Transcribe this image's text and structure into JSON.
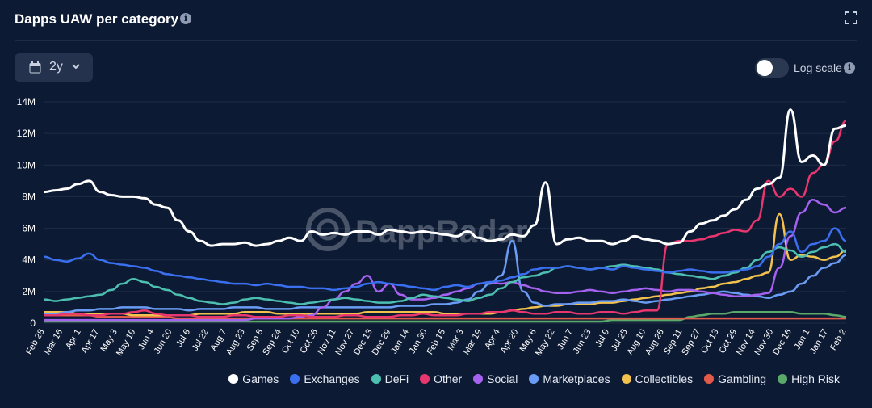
{
  "header": {
    "title": "Dapps UAW per category"
  },
  "controls": {
    "range_label": "2y",
    "log_scale_label": "Log scale",
    "log_scale_on": false
  },
  "watermark": "DappRadar",
  "chart_data": {
    "type": "line",
    "title": "Dapps UAW per category",
    "xlabel": "",
    "ylabel": "",
    "ylim": [
      0,
      14000000
    ],
    "y_ticks": [
      "0",
      "2M",
      "4M",
      "6M",
      "8M",
      "10M",
      "12M",
      "14M"
    ],
    "x_ticks": [
      "Feb 28",
      "Mar 16",
      "Apr 1",
      "Apr 17",
      "May 3",
      "May 19",
      "Jun 4",
      "Jun 20",
      "Jul 6",
      "Jul 22",
      "Aug 7",
      "Aug 23",
      "Sep 8",
      "Sep 24",
      "Oct 10",
      "Oct 26",
      "Nov 11",
      "Nov 27",
      "Dec 13",
      "Dec 29",
      "Jan 14",
      "Jan 30",
      "Feb 15",
      "Mar 3",
      "Mar 19",
      "Apr 4",
      "Apr 20",
      "May 6",
      "May 22",
      "Jun 7",
      "Jun 23",
      "Jul 9",
      "Jul 25",
      "Aug 10",
      "Aug 26",
      "Sep 11",
      "Sep 27",
      "Oct 13",
      "Oct 29",
      "Nov 14",
      "Nov 30",
      "Dec 16",
      "Jan 1",
      "Jan 17",
      "Feb 2"
    ],
    "grid": true,
    "legend_position": "bottom-right",
    "series": [
      {
        "name": "Games",
        "color": "#ffffff",
        "values": [
          8.3,
          8.4,
          8.5,
          8.8,
          9.0,
          8.3,
          8.1,
          8.0,
          8.0,
          7.9,
          7.5,
          7.3,
          6.5,
          5.8,
          5.2,
          4.9,
          5.0,
          5.0,
          5.1,
          4.9,
          5.0,
          5.2,
          5.4,
          5.2,
          5.8,
          5.6,
          5.7,
          5.6,
          5.8,
          5.8,
          5.6,
          5.9,
          5.8,
          5.7,
          5.8,
          5.7,
          5.6,
          5.5,
          5.8,
          5.4,
          5.2,
          5.3,
          5.6,
          5.5,
          6.2,
          8.9,
          5.0,
          5.3,
          5.4,
          5.2,
          5.2,
          5.0,
          5.2,
          5.5,
          5.3,
          5.2,
          5.0,
          5.1,
          5.8,
          6.3,
          6.5,
          6.8,
          7.2,
          7.8,
          8.5,
          8.8,
          9.2,
          13.5,
          10.2,
          10.6,
          10.0,
          12.3,
          12.5
        ]
      },
      {
        "name": "Exchanges",
        "color": "#3a6ff0",
        "values": [
          4.2,
          4.0,
          3.9,
          4.1,
          4.4,
          4.0,
          3.8,
          3.7,
          3.6,
          3.5,
          3.3,
          3.1,
          3.0,
          2.9,
          2.8,
          2.7,
          2.6,
          2.5,
          2.5,
          2.4,
          2.5,
          2.4,
          2.3,
          2.3,
          2.2,
          2.2,
          2.1,
          2.2,
          2.3,
          2.5,
          2.6,
          2.5,
          2.4,
          2.3,
          2.2,
          2.1,
          2.3,
          2.4,
          2.3,
          2.5,
          2.6,
          2.7,
          2.9,
          3.1,
          3.4,
          3.5,
          3.5,
          3.6,
          3.5,
          3.4,
          3.5,
          3.4,
          3.6,
          3.5,
          3.4,
          3.3,
          3.2,
          3.3,
          3.4,
          3.3,
          3.2,
          3.2,
          3.3,
          3.4,
          3.6,
          4.2,
          5.0,
          5.8,
          4.5,
          5.0,
          5.2,
          6.0,
          5.2
        ]
      },
      {
        "name": "DeFi",
        "color": "#4dbfb0",
        "values": [
          1.5,
          1.4,
          1.5,
          1.6,
          1.7,
          1.8,
          2.1,
          2.5,
          2.8,
          2.6,
          2.3,
          2.1,
          1.8,
          1.6,
          1.4,
          1.3,
          1.2,
          1.3,
          1.5,
          1.6,
          1.5,
          1.4,
          1.3,
          1.2,
          1.3,
          1.4,
          1.5,
          1.6,
          1.5,
          1.4,
          1.3,
          1.3,
          1.4,
          1.6,
          1.8,
          1.7,
          1.6,
          1.5,
          1.4,
          1.6,
          1.8,
          2.2,
          2.6,
          2.9,
          3.0,
          3.2,
          3.5,
          3.6,
          3.5,
          3.4,
          3.5,
          3.6,
          3.7,
          3.6,
          3.5,
          3.4,
          3.2,
          3.1,
          3.0,
          2.9,
          2.8,
          3.0,
          3.2,
          3.5,
          4.0,
          4.5,
          4.8,
          4.6,
          4.2,
          4.5,
          4.8,
          5.0,
          4.5
        ]
      },
      {
        "name": "Other",
        "color": "#e8366e",
        "values": [
          0.5,
          0.5,
          0.6,
          0.6,
          0.5,
          0.5,
          0.6,
          0.6,
          0.7,
          0.8,
          0.6,
          0.5,
          0.5,
          0.5,
          0.4,
          0.4,
          0.4,
          0.5,
          0.5,
          0.4,
          0.4,
          0.4,
          0.5,
          0.5,
          0.4,
          0.4,
          0.4,
          0.5,
          0.5,
          0.4,
          0.4,
          0.4,
          0.5,
          0.5,
          0.6,
          0.5,
          0.5,
          0.5,
          0.6,
          0.6,
          0.7,
          0.7,
          0.8,
          0.7,
          0.6,
          0.6,
          0.7,
          0.7,
          0.6,
          0.6,
          0.7,
          0.7,
          0.6,
          0.7,
          0.8,
          0.8,
          5.0,
          5.2,
          5.2,
          5.3,
          5.5,
          5.7,
          5.9,
          5.8,
          6.5,
          9.0,
          8.0,
          8.5,
          8.0,
          9.5,
          10.0,
          11.5,
          12.8
        ]
      },
      {
        "name": "Social",
        "color": "#a561f0",
        "values": [
          0.2,
          0.2,
          0.2,
          0.2,
          0.2,
          0.2,
          0.2,
          0.2,
          0.2,
          0.2,
          0.2,
          0.2,
          0.2,
          0.2,
          0.2,
          0.2,
          0.2,
          0.2,
          0.2,
          0.3,
          0.3,
          0.3,
          0.3,
          0.4,
          0.5,
          1.0,
          1.5,
          2.0,
          2.5,
          3.0,
          2.0,
          2.5,
          1.8,
          1.5,
          1.5,
          1.6,
          1.8,
          2.0,
          2.2,
          2.5,
          2.6,
          2.5,
          2.6,
          2.4,
          2.2,
          2.0,
          1.9,
          1.9,
          2.0,
          2.1,
          2.0,
          1.9,
          2.0,
          2.1,
          2.2,
          2.1,
          2.0,
          2.1,
          2.1,
          2.0,
          1.9,
          1.8,
          1.7,
          1.7,
          1.8,
          1.9,
          3.5,
          5.5,
          7.0,
          7.8,
          7.5,
          7.0,
          7.3
        ]
      },
      {
        "name": "Marketplaces",
        "color": "#6a9cf5",
        "values": [
          0.6,
          0.6,
          0.7,
          0.8,
          0.8,
          0.9,
          0.9,
          1.0,
          1.0,
          1.0,
          0.9,
          0.9,
          0.9,
          0.8,
          0.9,
          0.9,
          0.9,
          1.0,
          1.0,
          1.0,
          0.9,
          0.9,
          0.9,
          1.0,
          1.0,
          1.0,
          1.0,
          1.0,
          1.0,
          1.0,
          1.0,
          1.0,
          1.1,
          1.1,
          1.1,
          1.2,
          1.2,
          1.3,
          1.5,
          2.0,
          2.5,
          3.0,
          5.2,
          2.0,
          1.3,
          1.1,
          1.2,
          1.2,
          1.3,
          1.3,
          1.4,
          1.4,
          1.5,
          1.4,
          1.3,
          1.4,
          1.5,
          1.6,
          1.7,
          1.8,
          1.9,
          2.0,
          1.9,
          1.8,
          1.7,
          1.6,
          1.8,
          2.0,
          2.5,
          3.0,
          3.5,
          3.8,
          4.3
        ]
      },
      {
        "name": "Collectibles",
        "color": "#f2c14e",
        "values": [
          0.7,
          0.7,
          0.7,
          0.6,
          0.6,
          0.6,
          0.6,
          0.6,
          0.5,
          0.5,
          0.5,
          0.5,
          0.5,
          0.5,
          0.6,
          0.6,
          0.6,
          0.6,
          0.7,
          0.7,
          0.7,
          0.6,
          0.6,
          0.6,
          0.6,
          0.6,
          0.6,
          0.6,
          0.6,
          0.7,
          0.7,
          0.7,
          0.7,
          0.7,
          0.7,
          0.7,
          0.6,
          0.6,
          0.6,
          0.6,
          0.6,
          0.7,
          0.8,
          0.9,
          1.0,
          1.1,
          1.1,
          1.2,
          1.2,
          1.2,
          1.3,
          1.3,
          1.4,
          1.5,
          1.6,
          1.7,
          1.8,
          1.9,
          2.0,
          2.2,
          2.3,
          2.5,
          2.6,
          2.8,
          3.0,
          3.2,
          6.9,
          4.0,
          4.3,
          4.2,
          4.0,
          4.2,
          4.6
        ]
      },
      {
        "name": "Gambling",
        "color": "#e25a4a",
        "values": [
          0.5,
          0.5,
          0.5,
          0.5,
          0.5,
          0.4,
          0.4,
          0.4,
          0.4,
          0.4,
          0.4,
          0.4,
          0.3,
          0.3,
          0.3,
          0.3,
          0.3,
          0.3,
          0.3,
          0.3,
          0.3,
          0.3,
          0.3,
          0.3,
          0.3,
          0.3,
          0.3,
          0.3,
          0.3,
          0.3,
          0.3,
          0.3,
          0.3,
          0.3,
          0.3,
          0.3,
          0.3,
          0.3,
          0.3,
          0.3,
          0.3,
          0.3,
          0.3,
          0.3,
          0.3,
          0.3,
          0.3,
          0.3,
          0.3,
          0.3,
          0.3,
          0.3,
          0.3,
          0.3,
          0.3,
          0.3,
          0.3,
          0.3,
          0.3,
          0.3,
          0.3,
          0.3,
          0.3,
          0.3,
          0.3,
          0.3,
          0.3,
          0.3,
          0.3,
          0.3,
          0.3,
          0.3,
          0.3
        ]
      },
      {
        "name": "High Risk",
        "color": "#5aa86a",
        "values": [
          0.1,
          0.1,
          0.1,
          0.1,
          0.1,
          0.1,
          0.1,
          0.1,
          0.1,
          0.1,
          0.1,
          0.1,
          0.1,
          0.1,
          0.1,
          0.1,
          0.1,
          0.1,
          0.1,
          0.1,
          0.1,
          0.1,
          0.1,
          0.1,
          0.1,
          0.1,
          0.1,
          0.1,
          0.1,
          0.1,
          0.1,
          0.1,
          0.1,
          0.1,
          0.1,
          0.1,
          0.1,
          0.1,
          0.1,
          0.1,
          0.1,
          0.1,
          0.1,
          0.1,
          0.1,
          0.1,
          0.1,
          0.1,
          0.1,
          0.1,
          0.1,
          0.2,
          0.2,
          0.2,
          0.2,
          0.2,
          0.2,
          0.2,
          0.4,
          0.5,
          0.6,
          0.6,
          0.7,
          0.7,
          0.7,
          0.7,
          0.7,
          0.7,
          0.6,
          0.6,
          0.6,
          0.5,
          0.4
        ]
      }
    ]
  }
}
